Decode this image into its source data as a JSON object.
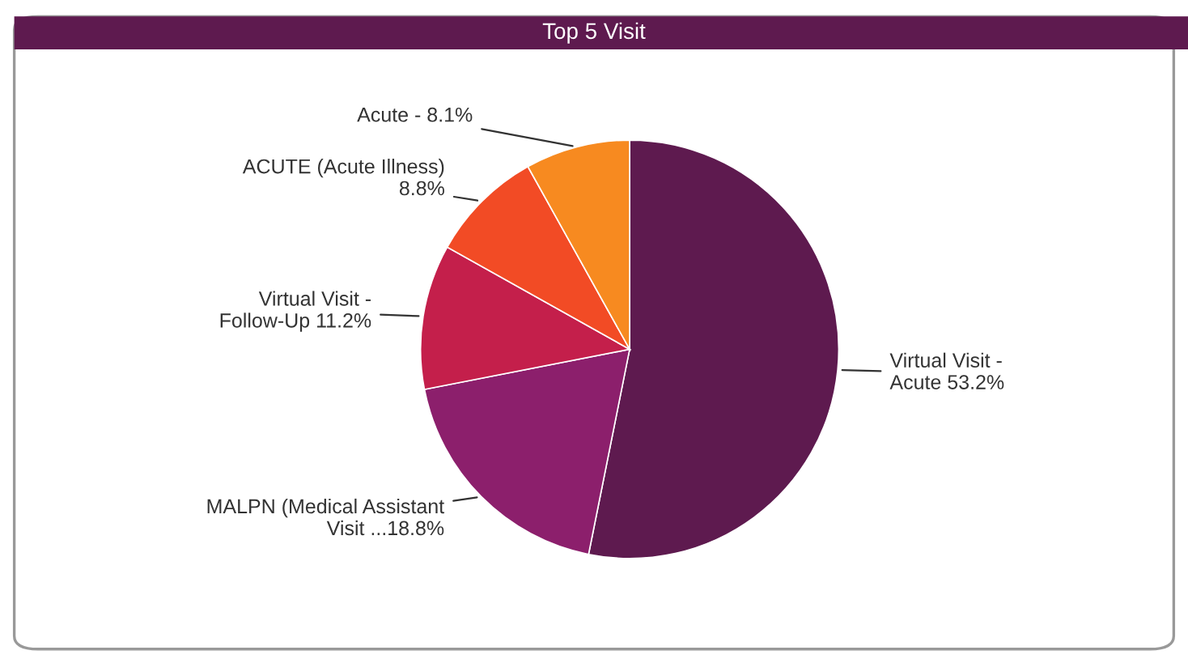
{
  "chart_data": {
    "type": "pie",
    "title": "Top 5 Visit",
    "categories": [
      "Virtual Visit -\nAcute ",
      "MALPN (Medical Assistant\nVisit ...",
      "Virtual Visit -\nFollow-Up ",
      "ACUTE (Acute Illness)\n",
      "Acute - "
    ],
    "values": [
      53.2,
      18.8,
      11.2,
      8.8,
      8.1
    ],
    "colors": [
      "#5e1a4f",
      "#8c1f6c",
      "#c41f4b",
      "#f24b25",
      "#f78a20"
    ],
    "value_labels": [
      "53.2%",
      "18.8%",
      "11.2%",
      "8.8%",
      "8.1%"
    ],
    "legend": false
  }
}
